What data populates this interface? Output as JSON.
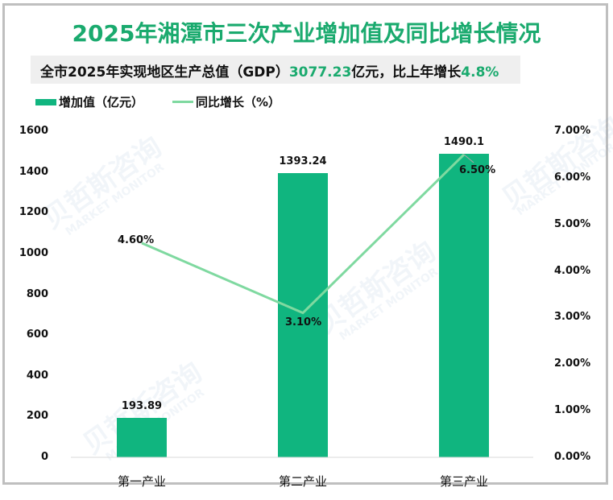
{
  "title": "2025年湘潭市三次产业增加值及同比增长情况",
  "subtitle": {
    "prefix": "全市2025年实现地区生产总值（GDP）",
    "gdp_value": "3077.23",
    "middle": "亿元，比上年增长",
    "growth": "4.8%"
  },
  "legend": {
    "bar_label": "增加值（亿元）",
    "line_label": "同比增长（%）"
  },
  "watermark": {
    "cn": "贝哲斯咨询",
    "en": "MARKET MONITOR"
  },
  "colors": {
    "title": "#1aaa6e",
    "bar": "#10b57f",
    "line": "#7fd9a0",
    "accent_text": "#1aaa6e",
    "frame": "#bfbfbf",
    "axis_line": "#d9d9d9"
  },
  "chart_data": {
    "type": "bar+line",
    "title": "2025年湘潭市三次产业增加值及同比增长情况",
    "categories": [
      "第一产业",
      "第二产业",
      "第三产业"
    ],
    "series": [
      {
        "name": "增加值（亿元）",
        "type": "bar",
        "axis": "left",
        "values": [
          193.89,
          1393.24,
          1490.1
        ],
        "labels": [
          "193.89",
          "1393.24",
          "1490.1"
        ]
      },
      {
        "name": "同比增长（%）",
        "type": "line",
        "axis": "right",
        "values": [
          4.6,
          3.1,
          6.5
        ],
        "labels": [
          "4.60%",
          "3.10%",
          "6.50%"
        ]
      }
    ],
    "left_axis": {
      "ticks": [
        "0",
        "200",
        "400",
        "600",
        "800",
        "1000",
        "1200",
        "1400",
        "1600"
      ],
      "range": [
        0,
        1600
      ]
    },
    "right_axis": {
      "ticks": [
        "0.00%",
        "1.00%",
        "2.00%",
        "3.00%",
        "4.00%",
        "5.00%",
        "6.00%",
        "7.00%"
      ],
      "range": [
        0,
        7
      ]
    },
    "legend_position": "top-left",
    "grid": false
  }
}
